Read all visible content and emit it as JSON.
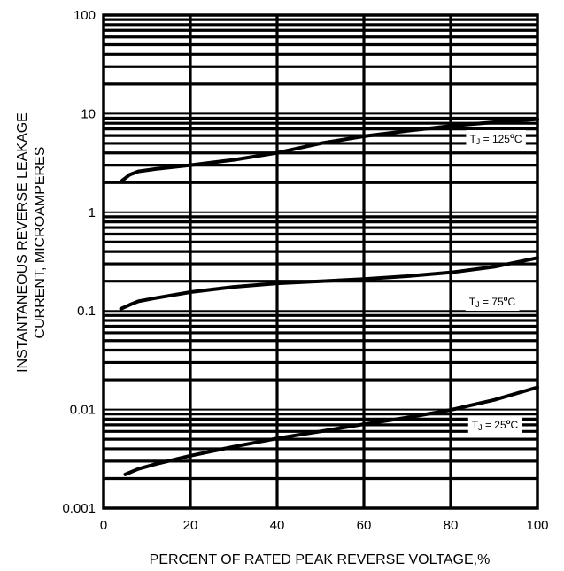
{
  "chart_data": {
    "type": "line",
    "title": "",
    "xlabel": "PERCENT OF RATED PEAK REVERSE VOLTAGE,%",
    "ylabel_lines": [
      "INSTANTANEOUS REVERSE LEAKAGE",
      "CURRENT, MICROAMPERES"
    ],
    "x_scale": "linear",
    "y_scale": "log",
    "xlim": [
      0,
      100
    ],
    "ylim": [
      0.001,
      100
    ],
    "x_ticks": [
      0,
      20,
      40,
      60,
      80,
      100
    ],
    "x_tick_labels": [
      "0",
      "20",
      "40",
      "60",
      "80",
      "100"
    ],
    "y_ticks": [
      0.001,
      0.01,
      0.1,
      1,
      10,
      100
    ],
    "y_tick_labels": [
      "0.001",
      "0.01",
      "0.1",
      "1",
      "10",
      "100"
    ],
    "grid": true,
    "series": [
      {
        "name": "TJ = 125°C",
        "label_parts": [
          "T",
          "J",
          " = 125",
          "o",
          "C"
        ],
        "x": [
          4,
          6,
          8,
          12,
          20,
          30,
          40,
          50,
          60,
          70,
          80,
          90,
          100
        ],
        "y": [
          2.05,
          2.4,
          2.6,
          2.75,
          3.0,
          3.4,
          4.0,
          5.0,
          5.9,
          6.7,
          7.5,
          8.2,
          8.8
        ]
      },
      {
        "name": "TJ = 75°C",
        "label_parts": [
          "T",
          "J",
          " = 75",
          "o",
          "C"
        ],
        "x": [
          4,
          6,
          8,
          12,
          20,
          30,
          40,
          50,
          60,
          70,
          80,
          90,
          100
        ],
        "y": [
          0.105,
          0.115,
          0.125,
          0.135,
          0.155,
          0.175,
          0.19,
          0.2,
          0.21,
          0.225,
          0.245,
          0.28,
          0.345
        ]
      },
      {
        "name": "TJ = 25°C",
        "label_parts": [
          "T",
          "J",
          " = 25",
          "o",
          "C"
        ],
        "x": [
          5,
          8,
          12,
          20,
          30,
          40,
          50,
          60,
          70,
          80,
          90,
          100
        ],
        "y": [
          0.0022,
          0.0025,
          0.0028,
          0.0034,
          0.0042,
          0.0051,
          0.006,
          0.0071,
          0.0083,
          0.0099,
          0.0125,
          0.0168
        ]
      }
    ]
  }
}
